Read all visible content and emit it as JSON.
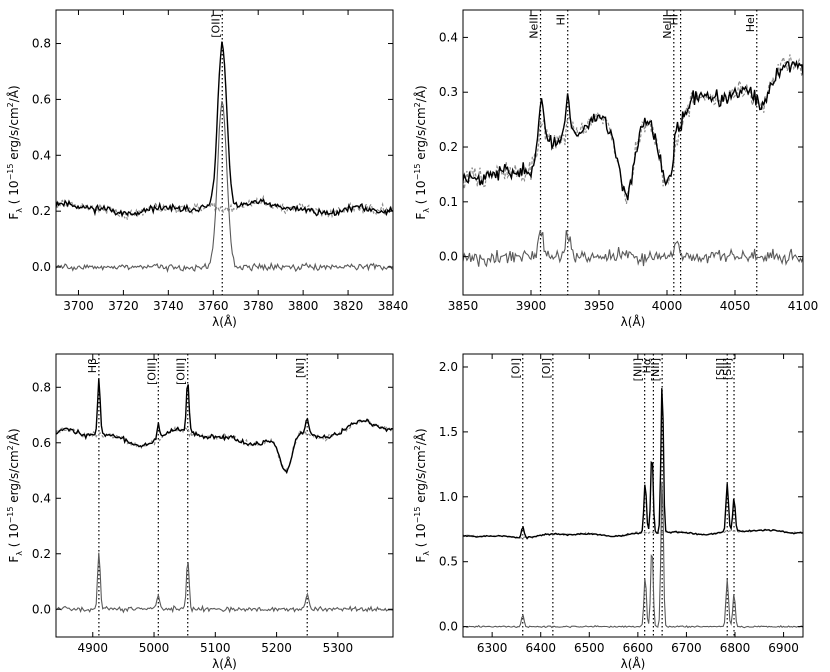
{
  "figure": {
    "ylabel_main": "F",
    "ylabel_sub": "λ",
    "ylabel_rest": " ( 10",
    "ylabel_exp": "−15",
    "ylabel_units": " erg/s/cm",
    "ylabel_sq": "2",
    "ylabel_end": "/Å)",
    "xlabel": "λ(Å)"
  },
  "colors": {
    "black_line": "#000000",
    "dashed_line": "#8c8c8c",
    "residual_line": "#5a5a5a",
    "marker_line": "#000000"
  },
  "chart_data": [
    {
      "type": "line",
      "panel": "top-left",
      "xlim": [
        3690,
        3840
      ],
      "ylim": [
        -0.1,
        0.92
      ],
      "xticks": [
        3700,
        3720,
        3740,
        3760,
        3780,
        3800,
        3820,
        3840
      ],
      "yticks": [
        0.0,
        0.2,
        0.4,
        0.6,
        0.8
      ],
      "ytick_labels": [
        "0.0",
        "0.2",
        "0.4",
        "0.6",
        "0.8"
      ],
      "lines": [
        {
          "label": "[OII]",
          "x": 3764
        }
      ],
      "continuum": {
        "level": 0.21,
        "slope": 0.0,
        "waves": [
          [
            0.008,
            7.1,
            0.3
          ],
          [
            0.006,
            13.7,
            1.1
          ],
          [
            0.01,
            3.3,
            2.0
          ]
        ]
      },
      "bumps": [],
      "emission": [
        {
          "center": 3764,
          "amp": 0.59,
          "sigma": 2.0
        }
      ],
      "residual_offset": 0.0,
      "residual_noise": 0.012,
      "noise_seed": 11
    },
    {
      "type": "line",
      "panel": "top-right",
      "xlim": [
        3850,
        4100
      ],
      "ylim": [
        -0.07,
        0.45
      ],
      "xticks": [
        3850,
        3900,
        3950,
        4000,
        4050,
        4100
      ],
      "yticks": [
        0.0,
        0.1,
        0.2,
        0.3,
        0.4
      ],
      "ytick_labels": [
        "0.0",
        "0.1",
        "0.2",
        "0.3",
        "0.4"
      ],
      "lines": [
        {
          "label": "NeIII",
          "x": 3907
        },
        {
          "label": "HI",
          "x": 3927
        },
        {
          "label": "NeIII",
          "x": 4005
        },
        {
          "label": "HI",
          "x": 4010
        },
        {
          "label": "HeI",
          "x": 4066
        }
      ],
      "continuum": {
        "level": 0.13,
        "slope": 0.00085,
        "waves": [
          [
            0.012,
            8.9,
            0.5
          ],
          [
            0.008,
            14.3,
            2.2
          ]
        ]
      },
      "bumps": [
        {
          "center": 3970,
          "amp": -0.12,
          "sigma": 6
        },
        {
          "center": 4000,
          "amp": -0.1,
          "sigma": 6
        },
        {
          "center": 3945,
          "amp": 0.05,
          "sigma": 10
        },
        {
          "center": 3908,
          "amp": 0.05,
          "sigma": 3
        },
        {
          "center": 3928,
          "amp": 0.04,
          "sigma": 3
        },
        {
          "center": 4070,
          "amp": -0.04,
          "sigma": 4
        }
      ],
      "emission": [
        {
          "center": 3907,
          "amp": 0.05,
          "sigma": 1.5
        },
        {
          "center": 3927,
          "amp": 0.045,
          "sigma": 1.5
        },
        {
          "center": 4007,
          "amp": 0.035,
          "sigma": 1.5
        }
      ],
      "residual_offset": 0.0,
      "residual_noise": 0.014,
      "noise_seed": 23
    },
    {
      "type": "line",
      "panel": "bottom-left",
      "xlim": [
        4840,
        5390
      ],
      "ylim": [
        -0.1,
        0.92
      ],
      "xticks": [
        4900,
        5000,
        5100,
        5200,
        5300
      ],
      "yticks": [
        0.0,
        0.2,
        0.4,
        0.6,
        0.8
      ],
      "ytick_labels": [
        "0.0",
        "0.2",
        "0.4",
        "0.6",
        "0.8"
      ],
      "lines": [
        {
          "label": "Hβ",
          "x": 4910
        },
        {
          "label": "[OIII]",
          "x": 5007
        },
        {
          "label": "[OIII]",
          "x": 5055
        },
        {
          "label": "[NI]",
          "x": 5250
        }
      ],
      "continuum": {
        "level": 0.62,
        "slope": 0.0,
        "waves": [
          [
            0.02,
            6.1,
            0.2
          ],
          [
            0.012,
            11.7,
            1.4
          ]
        ]
      },
      "bumps": [
        {
          "center": 5215,
          "amp": -0.15,
          "sigma": 10
        },
        {
          "center": 5345,
          "amp": 0.08,
          "sigma": 25
        },
        {
          "center": 4860,
          "amp": 0.01,
          "sigma": 10
        }
      ],
      "emission": [
        {
          "center": 4910,
          "amp": 0.2,
          "sigma": 2.2
        },
        {
          "center": 5007,
          "amp": 0.05,
          "sigma": 2.2
        },
        {
          "center": 5055,
          "amp": 0.18,
          "sigma": 2.2
        },
        {
          "center": 5250,
          "amp": 0.05,
          "sigma": 3
        }
      ],
      "residual_offset": 0.0,
      "residual_noise": 0.008,
      "noise_seed": 37
    },
    {
      "type": "line",
      "panel": "bottom-right",
      "xlim": [
        6240,
        6940
      ],
      "ylim": [
        -0.08,
        2.1
      ],
      "xticks": [
        6300,
        6400,
        6500,
        6600,
        6700,
        6800,
        6900
      ],
      "yticks": [
        0.0,
        0.5,
        1.0,
        1.5,
        2.0
      ],
      "ytick_labels": [
        "0.0",
        "0.5",
        "1.0",
        "1.5",
        "2.0"
      ],
      "lines": [
        {
          "label": "[OI]",
          "x": 6363
        },
        {
          "label": "[OI]",
          "x": 6425
        },
        {
          "label": "[NII]",
          "x": 6614
        },
        {
          "label": "Hα",
          "x": 6632
        },
        {
          "label": "[NII]",
          "x": 6650
        },
        {
          "label": "[SII]",
          "x": 6784
        },
        {
          "label": "[SII]",
          "x": 6798
        }
      ],
      "continuum": {
        "level": 0.69,
        "slope": 7e-05,
        "waves": [
          [
            0.01,
            7.3,
            0.9
          ],
          [
            0.006,
            15.1,
            2.4
          ]
        ]
      },
      "bumps": [],
      "emission": [
        {
          "center": 6363,
          "amp": 0.09,
          "sigma": 2.5
        },
        {
          "center": 6615,
          "amp": 0.39,
          "sigma": 2.5
        },
        {
          "center": 6629,
          "amp": 0.62,
          "sigma": 2.5
        },
        {
          "center": 6650,
          "amp": 1.17,
          "sigma": 2.5
        },
        {
          "center": 6784,
          "amp": 0.37,
          "sigma": 2.5
        },
        {
          "center": 6798,
          "amp": 0.26,
          "sigma": 2.5
        }
      ],
      "residual_offset": 0.0,
      "residual_noise": 0.006,
      "noise_seed": 53
    }
  ]
}
